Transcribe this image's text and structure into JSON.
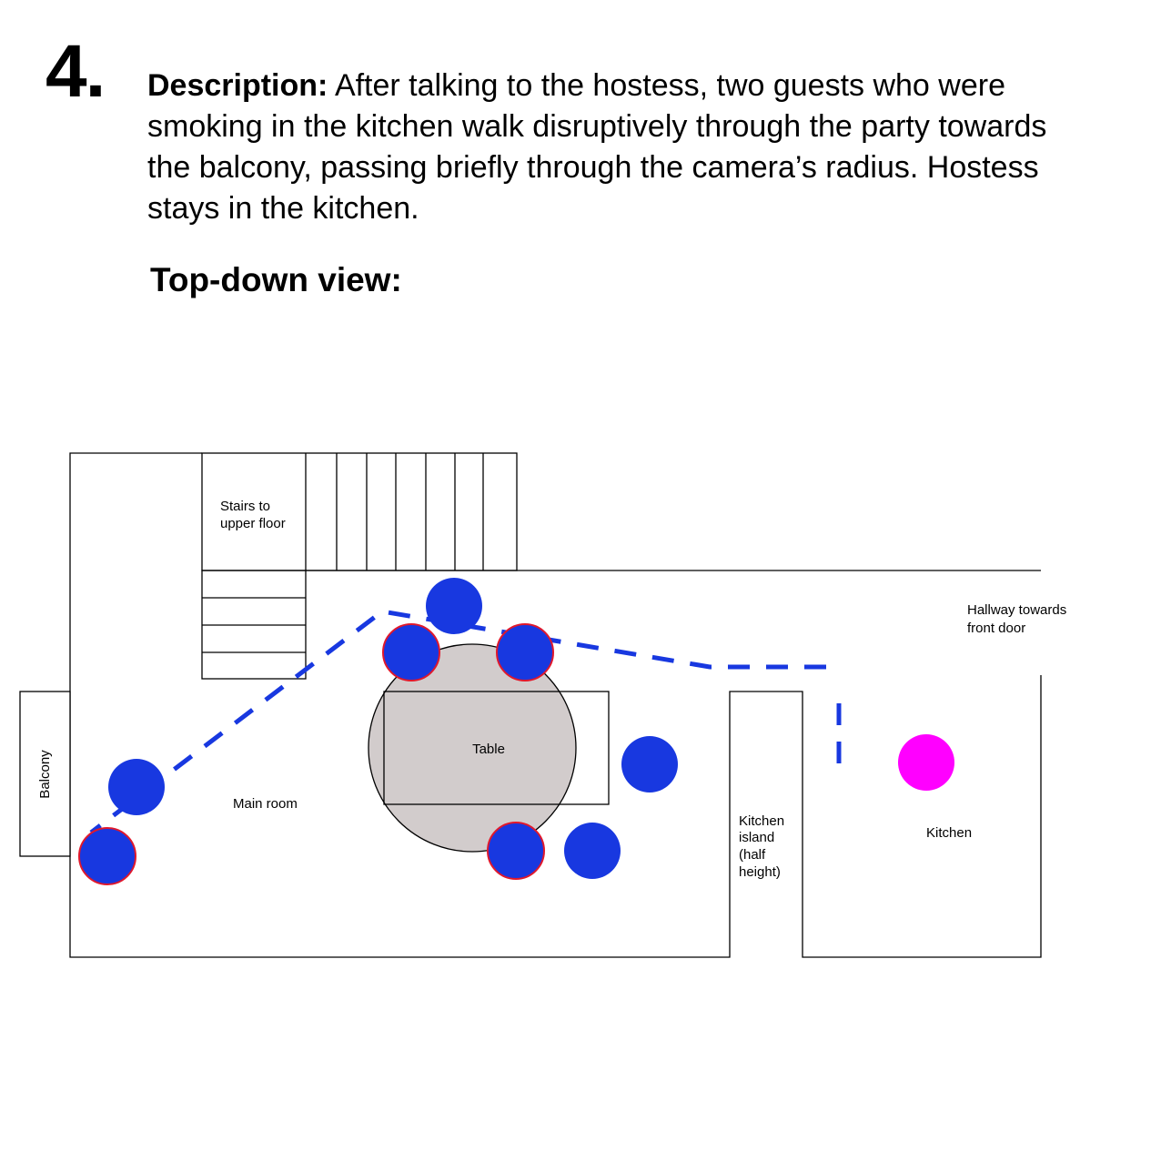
{
  "step": {
    "number": "4."
  },
  "description": {
    "label": "Description:",
    "text": "After talking to the hostess, two guests who were smoking in the kitchen walk disruptively through the party towards the balcony, passing briefly through the camera’s radius. Hostess stays in the kitchen."
  },
  "subheading": "Top-down view:",
  "plan": {
    "labels": {
      "stairs_line1": "Stairs to",
      "stairs_line2": "upper floor",
      "hallway_line1": "Hallway towards",
      "hallway_line2": "front door",
      "balcony": "Balcony",
      "main_room": "Main room",
      "table": "Table",
      "kitchen_island_line1": "Kitchen",
      "kitchen_island_line2": "island",
      "kitchen_island_line3": "(half",
      "kitchen_island_line4": "height)",
      "kitchen": "Kitchen"
    },
    "colors": {
      "guest": "#1838e0",
      "smoking_guest_outline": "#e0182c",
      "hostess": "#ff00ff",
      "path": "#1838e0",
      "table": "#d2cccc",
      "walls": "#000000"
    }
  }
}
